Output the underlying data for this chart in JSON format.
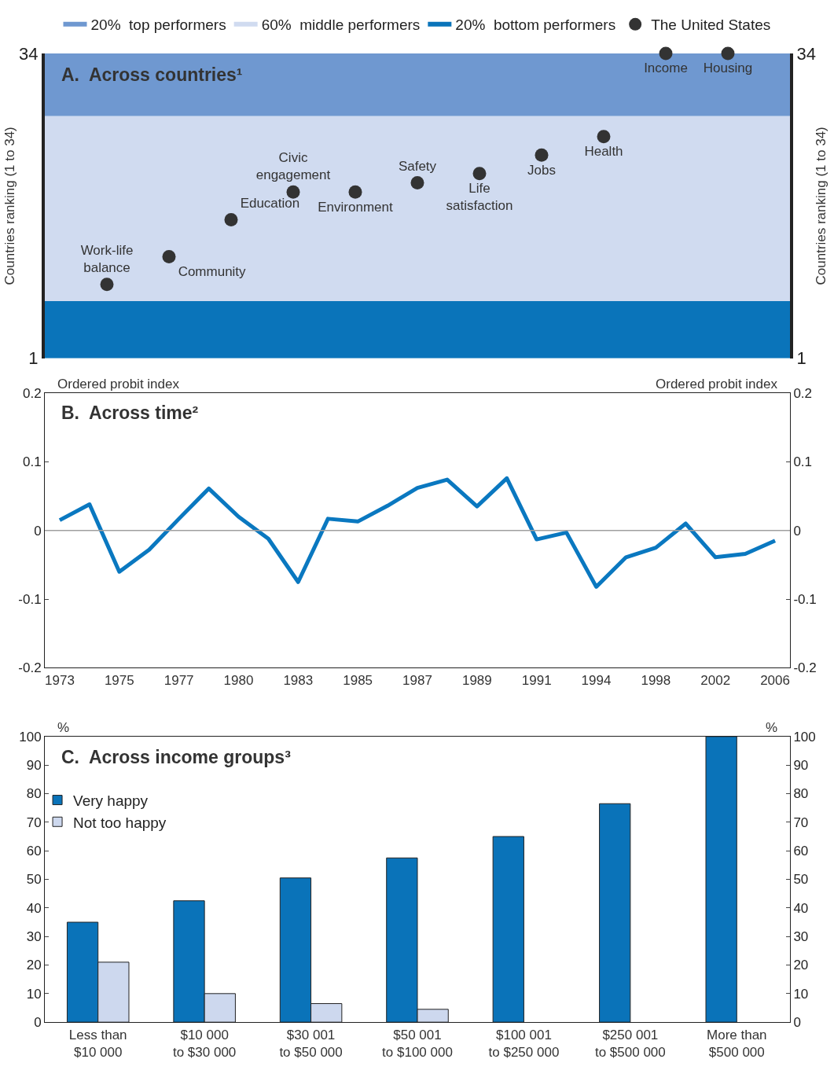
{
  "chart_data": [
    {
      "type": "scatter",
      "title": "A.  Across countries¹",
      "ylabel": "Countries ranking (1 to 34)",
      "y2label": "Countries ranking (1 to 34)",
      "categories": [
        "Work-life\nbalance",
        "Community",
        "Education",
        "Civic\nengagement",
        "Environment",
        "Safety",
        "Life\nsatisfaction",
        "Jobs",
        "Health",
        "Income",
        "Housing"
      ],
      "series": [
        {
          "name": "The United States",
          "color": "#333333",
          "values": [
            9,
            12,
            16,
            19,
            19,
            20,
            21,
            23,
            25,
            34,
            34
          ]
        }
      ],
      "bands": [
        {
          "axis": "y",
          "from": 27.2,
          "to": 34,
          "label": "20%  top performers",
          "color": "#6f98d0"
        },
        {
          "axis": "y",
          "from": 7.2,
          "to": 27.2,
          "label": "60%  middle performers",
          "color": "#d0dbf0"
        },
        {
          "axis": "y",
          "from": 1,
          "to": 7.2,
          "label": "20%  bottom performers",
          "color": "#0a74ba"
        }
      ],
      "ylim": [
        1,
        34
      ],
      "yticks": [
        1,
        34
      ],
      "y2lim": [
        1,
        34
      ],
      "y2ticks": [
        1,
        34
      ],
      "tick_labels": "y",
      "legend": "top",
      "marker": "circle"
    },
    {
      "type": "line",
      "title": "B.  Across time²",
      "ylabel": "Ordered probit index",
      "y2label": "Ordered probit index",
      "categories": [
        "1973",
        null,
        "1975",
        null,
        "1977",
        null,
        "1980",
        null,
        "1983",
        null,
        "1985",
        null,
        "1987",
        null,
        "1989",
        null,
        "1991",
        null,
        "1994",
        null,
        "1998",
        null,
        "2002",
        null,
        "2006"
      ],
      "series": [
        {
          "color": "#0a78c0",
          "values": [
            0.015,
            0.038,
            -0.06,
            -0.028,
            0.017,
            0.061,
            0.02,
            -0.012,
            -0.075,
            0.017,
            0.013,
            0.036,
            0.062,
            0.074,
            0.035,
            0.076,
            -0.013,
            -0.003,
            -0.082,
            -0.039,
            -0.025,
            0.01,
            -0.039,
            -0.034,
            -0.015
          ]
        }
      ],
      "ylim": [
        -0.2,
        0.2
      ],
      "yticks": [
        -0.2,
        -0.1,
        0,
        0.1,
        0.2
      ],
      "y2lim": [
        -0.2,
        0.2
      ],
      "y2ticks": [
        -0.2,
        -0.1,
        0,
        0.1,
        0.2
      ],
      "ref_lines": [
        {
          "axis": "y",
          "value": 0,
          "color": "#a0a0a0"
        }
      ],
      "marker": "none",
      "line_style": "solid"
    },
    {
      "type": "bar",
      "title": "C.  Across income groups³",
      "ylabel": "%",
      "y2label": "%",
      "categories": [
        "Less than\n$10 000",
        "$10 000\nto $30 000",
        "$30 001\nto $50 000",
        "$50 001\nto $100 000",
        "$100 001\nto $250 000",
        "$250 001\nto $500 000",
        "More than\n$500 000"
      ],
      "series": [
        {
          "name": "Very happy",
          "color": "#0a73b9",
          "values": [
            35,
            42.5,
            50.5,
            57.5,
            65,
            76.5,
            100
          ]
        },
        {
          "name": "Not too happy",
          "color": "#cdd8ee",
          "values": [
            21,
            10,
            6.5,
            4.5,
            null,
            null,
            null
          ]
        }
      ],
      "ylim": [
        0,
        100
      ],
      "yticks": [
        0,
        10,
        20,
        30,
        40,
        50,
        60,
        70,
        80,
        90,
        100
      ],
      "y2lim": [
        0,
        100
      ],
      "y2ticks": [
        0,
        10,
        20,
        30,
        40,
        50,
        60,
        70,
        80,
        90,
        100
      ],
      "legend": "top left"
    }
  ]
}
